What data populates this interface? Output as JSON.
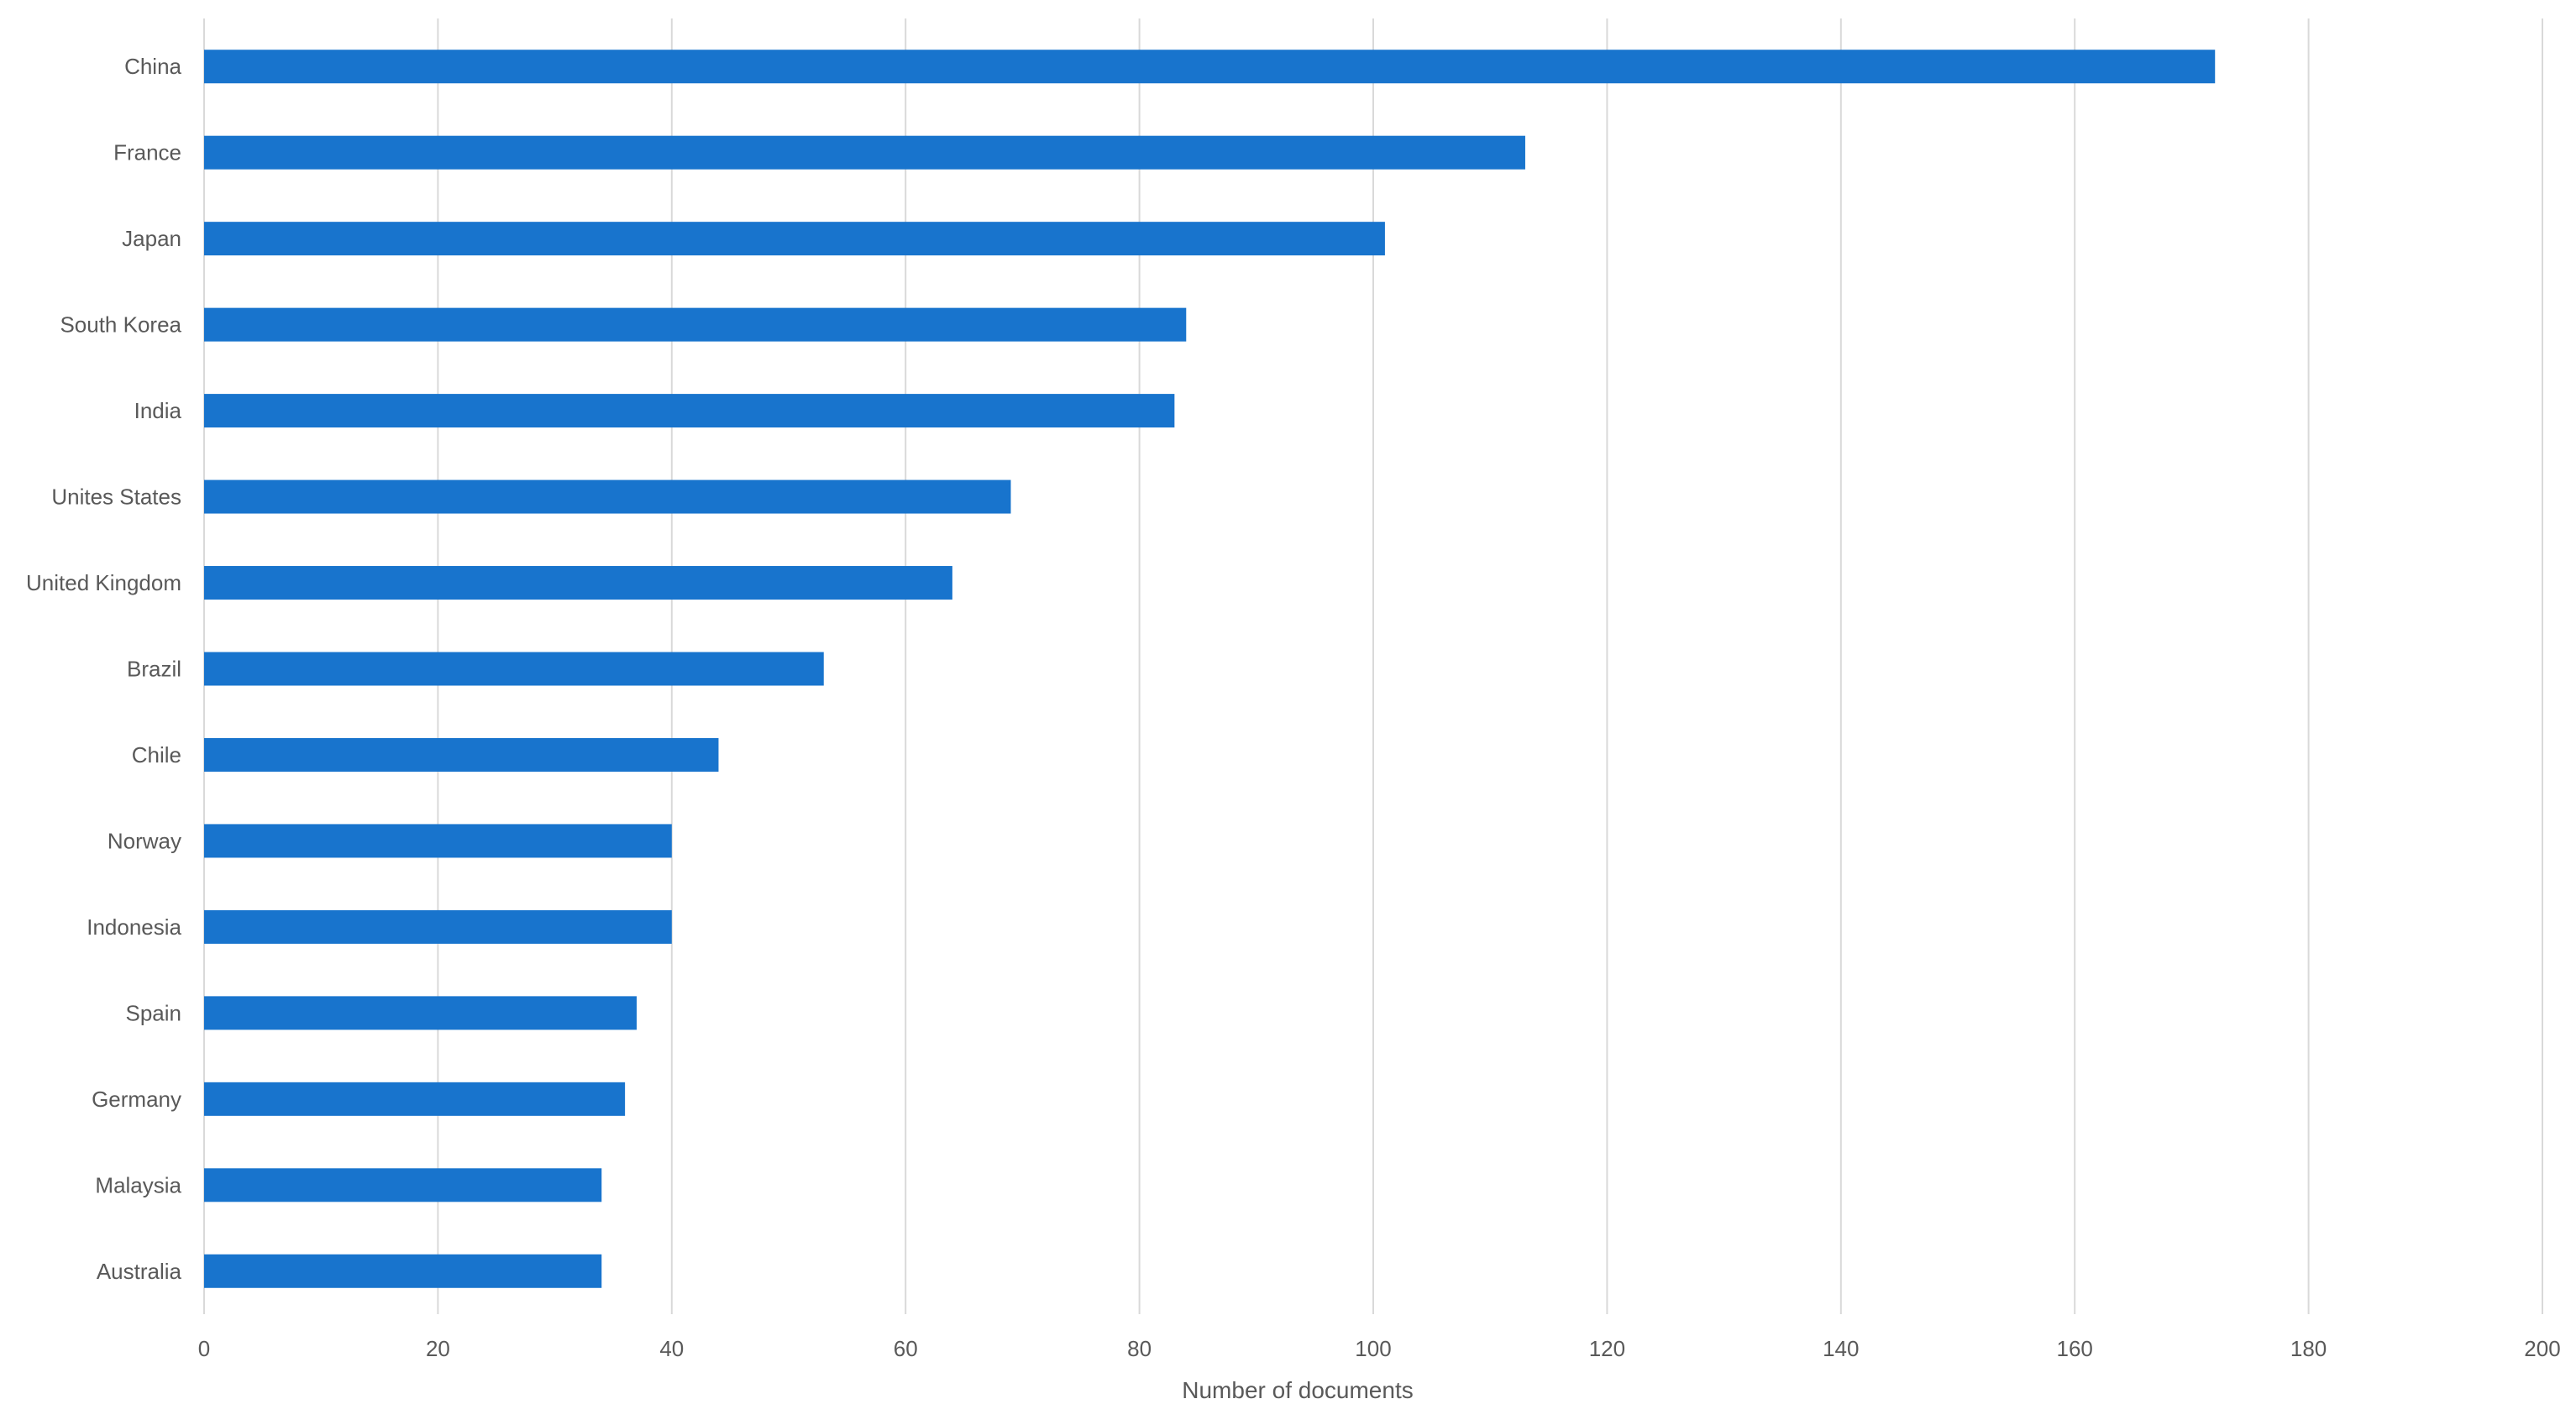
{
  "chart_data": {
    "type": "bar",
    "orientation": "horizontal",
    "title": "",
    "xlabel": "Number of documents",
    "ylabel": "",
    "categories": [
      "China",
      "France",
      "Japan",
      "South Korea",
      "India",
      "Unites States",
      "United Kingdom",
      "Brazil",
      "Chile",
      "Norway",
      "Indonesia",
      "Spain",
      "Germany",
      "Malaysia",
      "Australia"
    ],
    "values": [
      172,
      113,
      101,
      84,
      83,
      69,
      64,
      53,
      44,
      40,
      40,
      37,
      36,
      34,
      34
    ],
    "xlim": [
      0,
      200
    ],
    "xticks": [
      0,
      20,
      40,
      60,
      80,
      100,
      120,
      140,
      160,
      180,
      200
    ],
    "grid": "vertical",
    "legend": "none",
    "bar_color": "#1874CD",
    "grid_color": "#D9D9D9",
    "text_color": "#595959"
  }
}
